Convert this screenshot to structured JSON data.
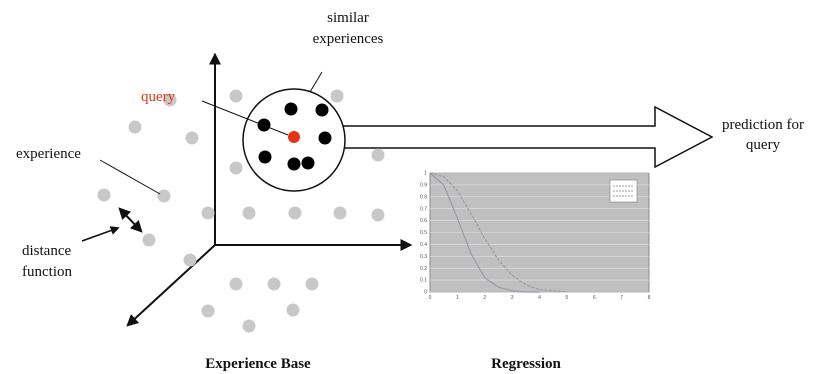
{
  "labels": {
    "similar_line1": "similar",
    "similar_line2": "experiences",
    "query": "query",
    "experience": "experience",
    "distance_line1": "distance",
    "distance_line2": "function",
    "prediction_line1": "prediction for",
    "prediction_line2": "query",
    "experience_base": "Experience Base",
    "regression": "Regression"
  },
  "colors": {
    "experience_dot": "#c8c8c8",
    "similar_dot": "#000000",
    "query_dot": "#e63312",
    "query_text": "#e63312",
    "plot_bg": "#c0c0c0"
  },
  "chart_data": {
    "type": "line",
    "x_ticks": [
      "0",
      "1",
      "2",
      "3",
      "4",
      "5",
      "6",
      "7",
      "8"
    ],
    "y_ticks": [
      "0",
      "0.1",
      "0.2",
      "0.3",
      "0.4",
      "0.5",
      "0.6",
      "0.7",
      "0.8",
      "0.9",
      "1"
    ],
    "xlim": [
      0,
      8
    ],
    "ylim": [
      0,
      1
    ],
    "series": [
      {
        "x": [
          0,
          0.5,
          1,
          1.5,
          2,
          2.5,
          3,
          3.5,
          4
        ],
        "values": [
          1,
          0.9,
          0.62,
          0.32,
          0.12,
          0.04,
          0.01,
          0,
          0
        ]
      },
      {
        "x": [
          0,
          0.5,
          1,
          1.5,
          2,
          2.5,
          3,
          3.5,
          4,
          4.5,
          5
        ],
        "values": [
          1,
          0.97,
          0.85,
          0.66,
          0.45,
          0.27,
          0.14,
          0.06,
          0.02,
          0.01,
          0
        ]
      }
    ],
    "grid": true
  }
}
